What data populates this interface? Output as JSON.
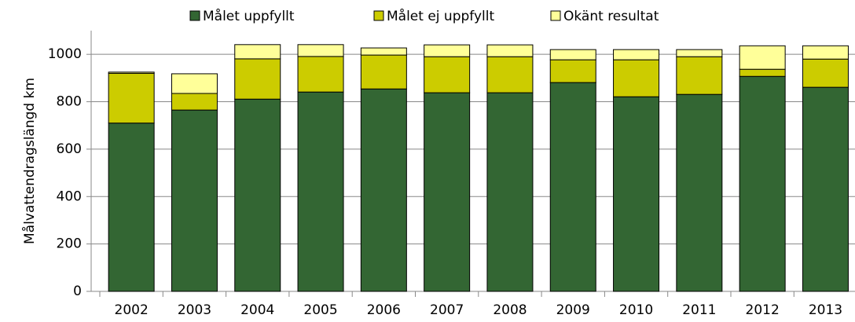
{
  "chart_data": {
    "type": "stacked-bar",
    "ylabel": "Målvattendragslängd km",
    "categories": [
      "2002",
      "2003",
      "2004",
      "2005",
      "2006",
      "2007",
      "2008",
      "2009",
      "2010",
      "2011",
      "2012",
      "2013"
    ],
    "series": [
      {
        "name": "Målet uppfyllt",
        "color": "#336633",
        "values": [
          710,
          765,
          811,
          841,
          854,
          838,
          838,
          881,
          821,
          831,
          907,
          861
        ]
      },
      {
        "name": "Målet ej uppfyllt",
        "color": "#cccc00",
        "values": [
          210,
          70,
          170,
          150,
          143,
          152,
          152,
          96,
          156,
          159,
          30,
          119
        ]
      },
      {
        "name": "Okänt resultat",
        "color": "#ffff99",
        "values": [
          5,
          83,
          60,
          50,
          30,
          50,
          50,
          43,
          43,
          30,
          99,
          56
        ]
      }
    ],
    "ylim": [
      0,
      1100
    ],
    "yticks": [
      0,
      200,
      400,
      600,
      800,
      1000
    ],
    "grid": true,
    "legend": "top"
  }
}
